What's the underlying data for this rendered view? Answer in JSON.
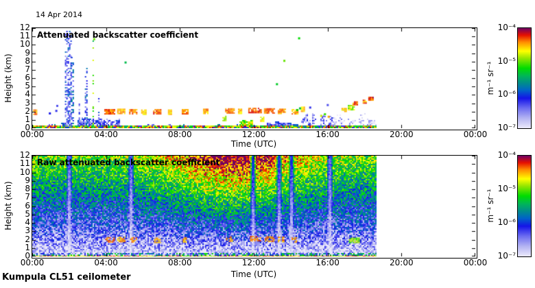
{
  "figure": {
    "date_label": "14 Apr 2014",
    "footer_label": "Kumpula CL51 ceilometer",
    "background": "#ffffff",
    "frame_color": "#000000"
  },
  "colorbar": {
    "unit": "m⁻¹ sr⁻¹",
    "tick_labels": [
      "10⁻⁴",
      "10⁻⁵",
      "10⁻⁶",
      "10⁻⁷"
    ],
    "scale": "log10",
    "min": 1e-07,
    "max": 0.0001,
    "stops": [
      [
        0.0,
        "#eceafb"
      ],
      [
        0.1,
        "#b4b4f2"
      ],
      [
        0.2,
        "#6d6df0"
      ],
      [
        0.3,
        "#1414e8"
      ],
      [
        0.38,
        "#0064c8"
      ],
      [
        0.45,
        "#008c8c"
      ],
      [
        0.52,
        "#00b45a"
      ],
      [
        0.6,
        "#00dc00"
      ],
      [
        0.7,
        "#96e600"
      ],
      [
        0.77,
        "#ffff00"
      ],
      [
        0.86,
        "#ff8c00"
      ],
      [
        0.93,
        "#e61000"
      ],
      [
        1.0,
        "#6e0064"
      ]
    ]
  },
  "chart_data": [
    {
      "type": "heatmap",
      "panel": "top",
      "title": "Attenuated backscatter coefficient",
      "xlabel": "Time (UTC)",
      "ylabel": "Height (km)",
      "x_range_hours": [
        0,
        24
      ],
      "x_tick_interval_hours": 4,
      "x_tick_labels": [
        "00:00",
        "04:00",
        "08:00",
        "12:00",
        "16:00",
        "20:00",
        "00:00"
      ],
      "y_range_km": [
        0,
        12
      ],
      "y_tick_interval_km": 1,
      "y_tick_labels": [
        "0",
        "1",
        "2",
        "3",
        "4",
        "5",
        "6",
        "7",
        "8",
        "9",
        "10",
        "11",
        "12"
      ],
      "grid": false,
      "data_end_hour": 18.6,
      "surface_layer": {
        "top_km": 0.35,
        "v_log10_range": [
          -5.6,
          -4.0
        ]
      },
      "bl_regions": [
        [
          0.0,
          2.4,
          0.7,
          -6.0,
          0.5
        ],
        [
          2.4,
          4.7,
          1.5,
          -6.3,
          0.75
        ],
        [
          4.7,
          6.2,
          0.55,
          -6.1,
          0.5
        ],
        [
          6.2,
          7.7,
          0.6,
          -6.5,
          0.85
        ],
        [
          7.7,
          11.2,
          0.55,
          -5.9,
          0.45
        ],
        [
          11.2,
          11.9,
          1.25,
          -4.9,
          0.85
        ],
        [
          11.9,
          12.7,
          0.5,
          -5.6,
          0.6
        ],
        [
          12.7,
          14.4,
          0.9,
          -6.3,
          0.9
        ],
        [
          14.4,
          16.2,
          2.0,
          -6.5,
          0.6
        ],
        [
          16.2,
          18.6,
          1.9,
          -6.85,
          0.45
        ]
      ],
      "precip_streaks": [
        {
          "t": 1.92,
          "w": 0.3,
          "h_max": 12.0,
          "v": -6.2,
          "density": 0.6
        },
        {
          "t": 2.15,
          "w": 0.08,
          "h_max": 9.0,
          "v": -6.0,
          "density": 0.45
        },
        {
          "t": 2.55,
          "w": 0.07,
          "h_max": 3.2,
          "v": -6.3,
          "density": 0.5
        },
        {
          "t": 2.9,
          "w": 0.1,
          "h_max": 7.5,
          "v": -6.1,
          "density": 0.4
        },
        {
          "t": 3.3,
          "w": 0.07,
          "h_max": 11.0,
          "v": -5.1,
          "density": 0.25
        },
        {
          "t": 3.6,
          "w": 0.06,
          "h_max": 4.2,
          "v": -6.2,
          "density": 0.4
        }
      ],
      "cloud_base_segments": [
        [
          0.05,
          0.25,
          2.0,
          -4.4
        ],
        [
          3.9,
          4.45,
          2.05,
          -4.35
        ],
        [
          4.6,
          5.0,
          2.1,
          -4.5
        ],
        [
          5.25,
          5.65,
          2.05,
          -4.4
        ],
        [
          5.9,
          6.15,
          2.0,
          -4.6
        ],
        [
          6.55,
          6.95,
          2.05,
          -4.35
        ],
        [
          7.35,
          7.55,
          2.0,
          -4.6
        ],
        [
          8.1,
          8.4,
          2.05,
          -4.45
        ],
        [
          9.25,
          9.5,
          2.1,
          -4.5
        ],
        [
          10.3,
          10.5,
          1.25,
          -4.85
        ],
        [
          10.45,
          10.9,
          2.15,
          -4.4
        ],
        [
          11.15,
          11.35,
          2.1,
          -4.55
        ],
        [
          11.7,
          12.4,
          2.2,
          -4.3
        ],
        [
          12.35,
          12.55,
          1.15,
          -4.7
        ],
        [
          12.55,
          13.1,
          2.15,
          -4.35
        ],
        [
          13.3,
          13.7,
          2.1,
          -4.4
        ],
        [
          14.05,
          14.35,
          2.05,
          -4.5
        ],
        [
          14.55,
          14.75,
          2.35,
          -4.6
        ]
      ],
      "late_blobs": [
        [
          16.75,
          17.0,
          2.1,
          2.45,
          -4.6
        ],
        [
          17.1,
          17.45,
          2.3,
          2.8,
          -4.9
        ],
        [
          17.35,
          17.6,
          2.9,
          3.25,
          -4.4
        ],
        [
          17.9,
          18.1,
          3.1,
          3.5,
          -4.4
        ],
        [
          18.2,
          18.45,
          3.45,
          3.8,
          -4.3
        ]
      ],
      "sparse_dots": [
        [
          1.25,
          2.2,
          -6.2
        ],
        [
          1.3,
          2.8,
          -6.3
        ],
        [
          0.9,
          1.9,
          -6.1
        ],
        [
          3.3,
          10.8,
          -5.0
        ],
        [
          5.0,
          8.0,
          -5.4
        ],
        [
          13.2,
          5.4,
          -5.3
        ],
        [
          13.6,
          8.2,
          -5.0
        ],
        [
          14.4,
          10.9,
          -5.2
        ],
        [
          15.0,
          2.6,
          -6.2
        ],
        [
          15.95,
          2.9,
          -6.3
        ],
        [
          15.6,
          1.6,
          -4.8
        ],
        [
          15.8,
          1.8,
          -5.1
        ],
        [
          16.0,
          1.5,
          -4.5
        ],
        [
          14.3,
          2.3,
          -5.2
        ],
        [
          14.45,
          2.5,
          -5.4
        ]
      ]
    },
    {
      "type": "heatmap",
      "panel": "bottom",
      "title": "Raw attenuated backscatter coefficient",
      "xlabel": "Time (UTC)",
      "ylabel": "Height (km)",
      "x_range_hours": [
        0,
        24
      ],
      "x_tick_interval_hours": 4,
      "x_tick_labels": [
        "00:00",
        "04:00",
        "08:00",
        "12:00",
        "16:00",
        "20:00",
        "00:00"
      ],
      "y_range_km": [
        0,
        12
      ],
      "y_tick_interval_km": 1,
      "y_tick_labels": [
        "0",
        "1",
        "2",
        "3",
        "4",
        "5",
        "6",
        "7",
        "8",
        "9",
        "10",
        "11",
        "12"
      ],
      "grid": false,
      "data_end_hour": 18.6,
      "noise_model": {
        "base_exponent": -7,
        "range_gain": 1.95,
        "range_power": 0.85,
        "solar_gain": 1.15,
        "solar_power": 1.3,
        "solar_peak_hour": 11.0,
        "solar_sigma_hours": 3.6,
        "jitter": 1.1
      },
      "pale_columns": [
        2.0,
        5.3,
        11.9,
        13.35,
        14.0,
        16.1
      ],
      "surface_strip": {
        "top_km": 0.22,
        "v_log10_range": [
          -5.2,
          -4.0
        ]
      },
      "low_mix": {
        "from_km": 0.22,
        "to_km": 0.5,
        "v_log10_range": [
          -6.3,
          -5.1
        ],
        "density": 0.5
      },
      "cloud_base_segments": [
        [
          3.95,
          4.45,
          2.05,
          -4.4
        ],
        [
          4.6,
          5.0,
          2.1,
          -4.5
        ],
        [
          5.3,
          5.6,
          2.05,
          -4.45
        ],
        [
          6.6,
          6.9,
          2.0,
          -4.5
        ],
        [
          8.15,
          8.35,
          2.05,
          -4.5
        ],
        [
          10.5,
          10.85,
          2.15,
          -4.45
        ],
        [
          11.8,
          12.35,
          2.2,
          -4.35
        ],
        [
          12.6,
          13.05,
          2.15,
          -4.4
        ],
        [
          13.3,
          13.65,
          2.1,
          -4.45
        ],
        [
          14.05,
          14.3,
          2.05,
          -4.5
        ]
      ],
      "blob": [
        17.15,
        17.7,
        1.75,
        2.35,
        -5.0
      ]
    }
  ]
}
